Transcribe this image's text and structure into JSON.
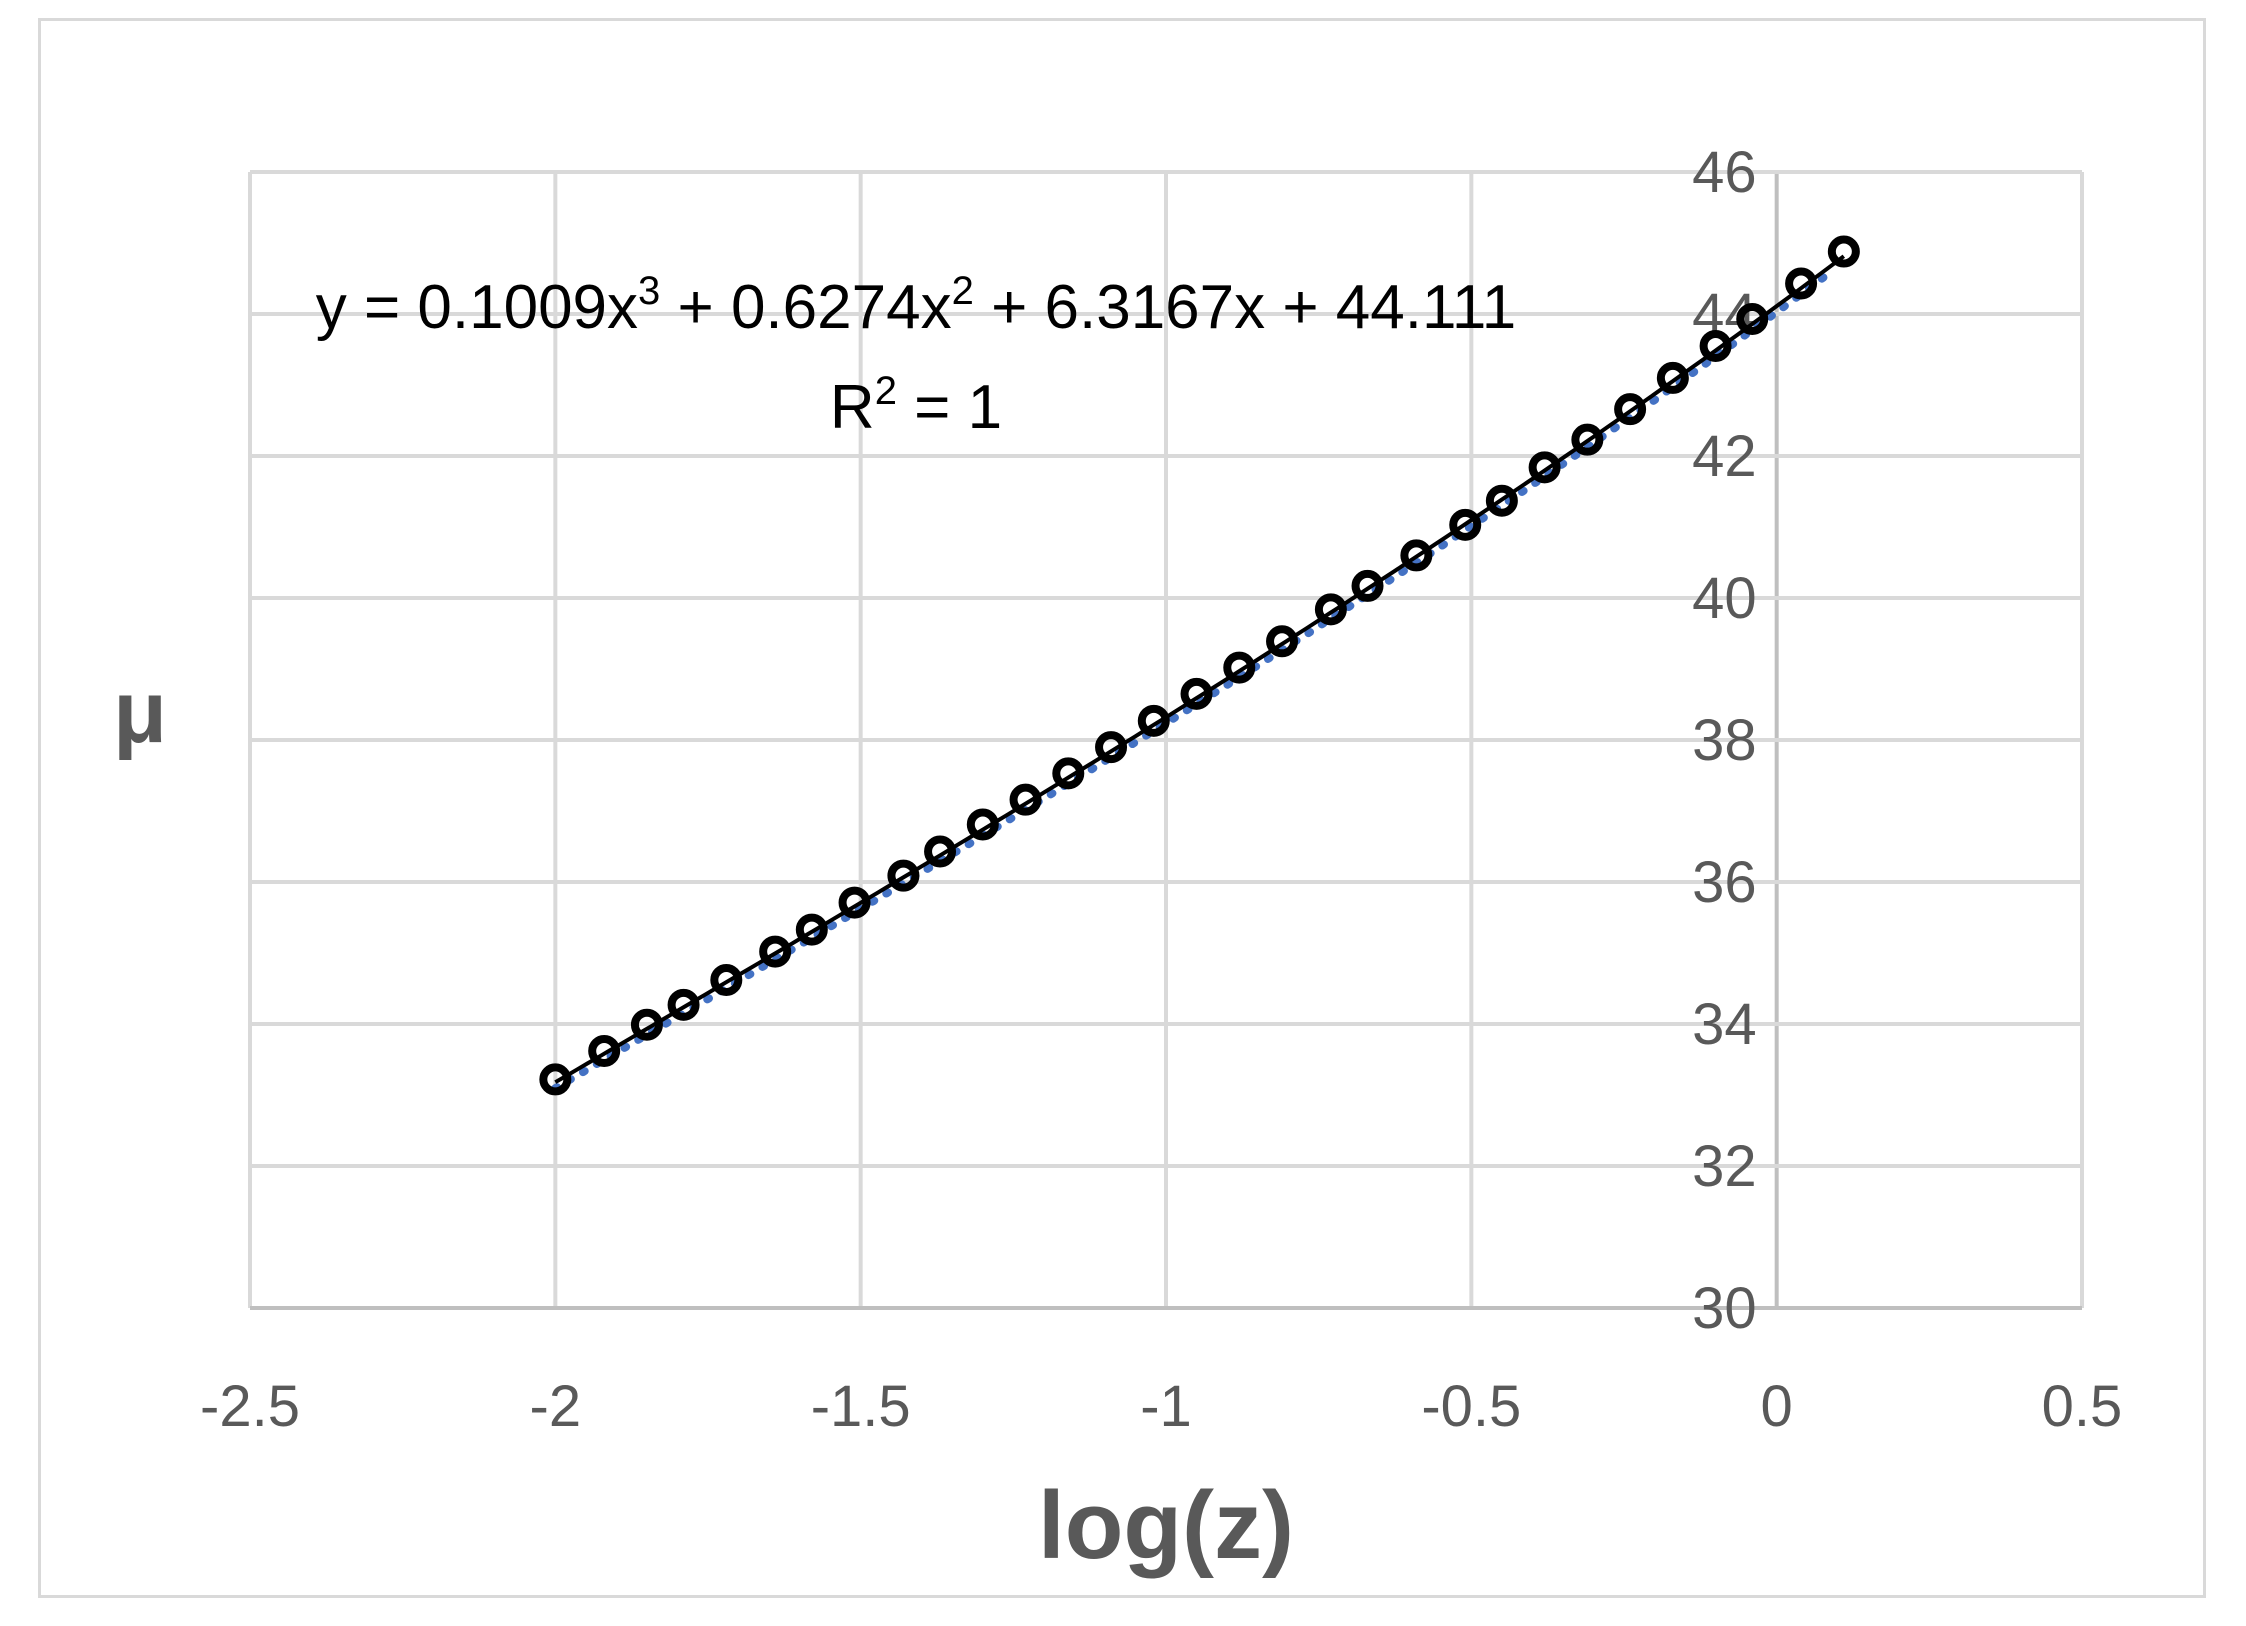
{
  "chart_data": {
    "type": "scatter",
    "xlabel": "log(z)",
    "ylabel": "μ",
    "xlim": [
      -2.5,
      0.5
    ],
    "ylim": [
      30,
      46
    ],
    "x_ticks": [
      "-2.5",
      "-2",
      "-1.5",
      "-1",
      "-0.5",
      "0",
      "0.5"
    ],
    "y_ticks": [
      "30",
      "32",
      "34",
      "36",
      "38",
      "40",
      "42",
      "44",
      "46"
    ],
    "grid": true,
    "trendline": {
      "type": "polynomial",
      "order": 3,
      "coefficients": [
        0.1009,
        0.6274,
        6.3167,
        44.111
      ],
      "equation": {
        "prefix": "y = 0.1009x",
        "exp1": "3",
        "mid": " + 0.6274x",
        "exp2": "2",
        "suffix": " + 6.3167x + 44.111"
      },
      "r_squared": {
        "prefix": "R",
        "exp": "2",
        "suffix": " = 1"
      }
    },
    "colors": {
      "points": "#000000",
      "fit_line": "#000000",
      "trend_dotted": "#4472c4",
      "grid": "#d9d9d9",
      "text": "#595959"
    },
    "series": [
      {
        "x": [
          -2.0,
          -1.92,
          -1.85,
          -1.79,
          -1.72,
          -1.64,
          -1.58,
          -1.51,
          -1.43,
          -1.37,
          -1.3,
          -1.23,
          -1.16,
          -1.09,
          -1.02,
          -0.95,
          -0.88,
          -0.81,
          -0.73,
          -0.67,
          -0.59,
          -0.51,
          -0.45,
          -0.38,
          -0.31,
          -0.24,
          -0.17,
          -0.1,
          -0.04,
          0.04,
          0.11
        ],
        "y": [
          33.22,
          33.62,
          33.99,
          34.27,
          34.62,
          35.02,
          35.33,
          35.71,
          36.09,
          36.43,
          36.81,
          37.16,
          37.53,
          37.9,
          38.27,
          38.65,
          39.02,
          39.39,
          39.84,
          40.17,
          40.6,
          41.03,
          41.37,
          41.84,
          42.23,
          42.66,
          43.1,
          43.55,
          43.93,
          44.43,
          44.88
        ]
      }
    ]
  }
}
